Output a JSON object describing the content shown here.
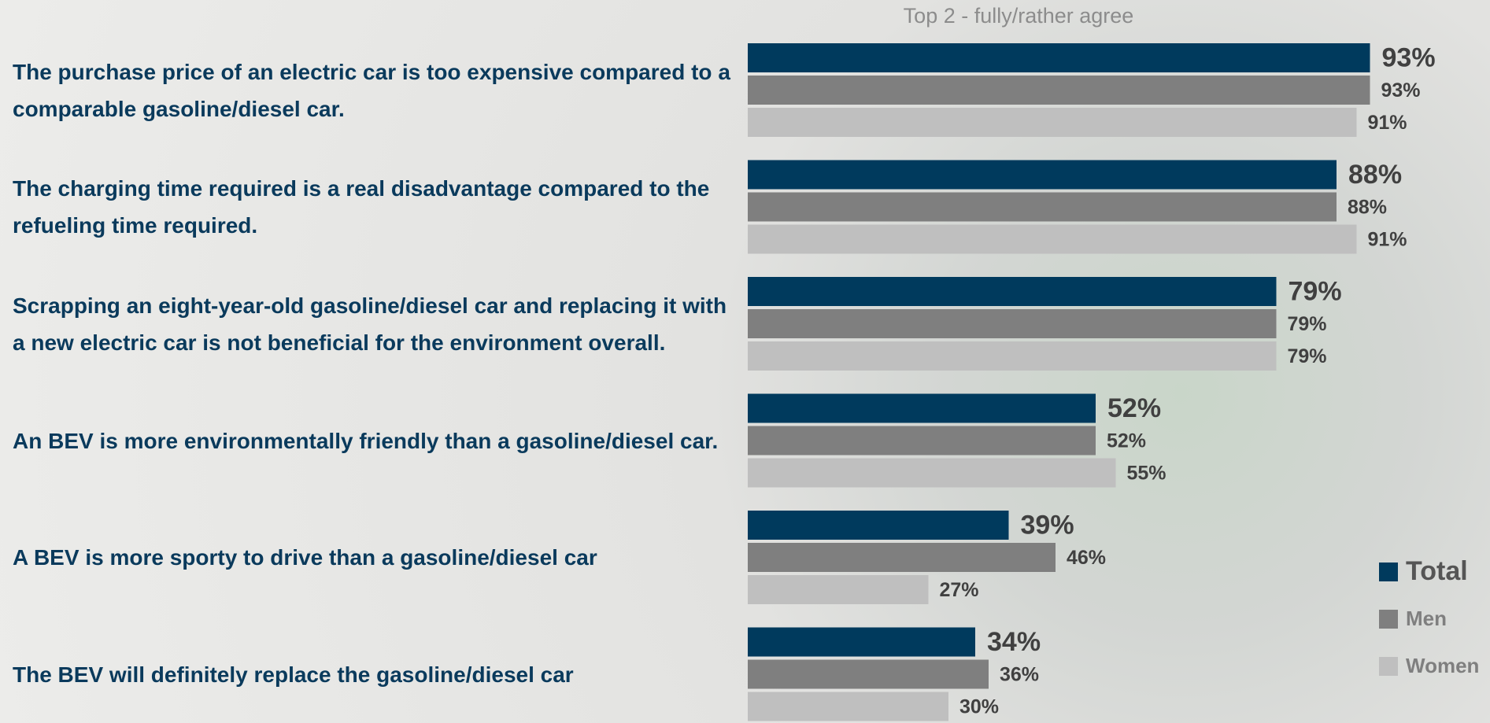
{
  "chart_data": {
    "type": "bar",
    "orientation": "horizontal",
    "title": "Top 2 - fully/rather agree",
    "categories": [
      "The purchase price of an electric car is too expensive compared to a comparable gasoline/diesel car.",
      "The charging time required is a real disadvantage compared to the refueling time required.",
      "Scrapping an eight-year-old gasoline/diesel car and replacing it with a new electric car is not beneficial for the environment overall.",
      "An BEV is more environmentally friendly than a gasoline/diesel car.",
      "A BEV is more sporty to drive than a gasoline/diesel car",
      "The BEV will definitely replace the gasoline/diesel car"
    ],
    "series": [
      {
        "name": "Total",
        "color": "#003a5d",
        "values": [
          93,
          88,
          79,
          52,
          39,
          34
        ],
        "value_labels": [
          "93%",
          "88%",
          "79%",
          "52%",
          "39%",
          "34%"
        ]
      },
      {
        "name": "Men",
        "color": "#7f7f7f",
        "values": [
          93,
          88,
          79,
          52,
          46,
          36
        ],
        "value_labels": [
          "93%",
          "88%",
          "79%",
          "52%",
          "46%",
          "36%"
        ]
      },
      {
        "name": "Women",
        "color": "#bfbfbf",
        "values": [
          91,
          91,
          79,
          55,
          27,
          30
        ],
        "value_labels": [
          "91%",
          "91%",
          "79%",
          "55%",
          "27%",
          "30%"
        ]
      }
    ],
    "xlim": [
      0,
      100
    ],
    "legend": "bottom-right"
  }
}
